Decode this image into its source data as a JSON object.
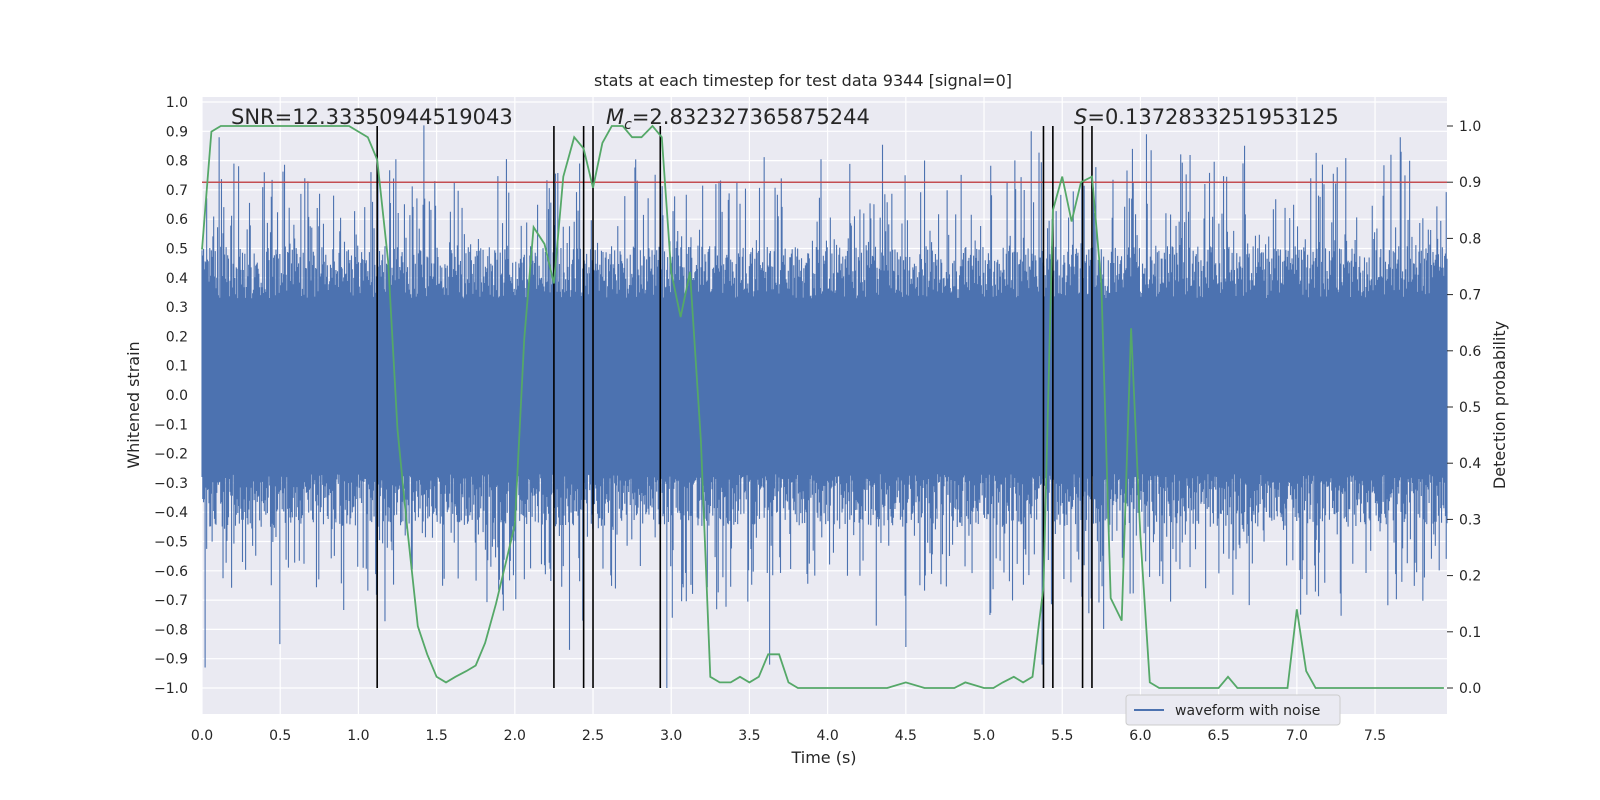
{
  "chart_data": {
    "type": "line",
    "title": "stats at each timestep for test data 9344 [signal=0]",
    "xlabel": "Time (s)",
    "ylabel_left": "Whitened strain",
    "ylabel_right": "Detection probability",
    "xlim": [
      0.0,
      8.0
    ],
    "ylim_left": [
      -1.09,
      1.0
    ],
    "ylim_right": [
      -0.05,
      1.04
    ],
    "x_ticks": [
      0.0,
      0.5,
      1.0,
      1.5,
      2.0,
      2.5,
      3.0,
      3.5,
      4.0,
      4.5,
      5.0,
      5.5,
      6.0,
      6.5,
      7.0,
      7.5
    ],
    "x_tick_labels": [
      "0.0",
      "0.5",
      "1.0",
      "1.5",
      "2.0",
      "2.5",
      "3.0",
      "3.5",
      "4.0",
      "4.5",
      "5.0",
      "5.5",
      "6.0",
      "6.5",
      "7.0",
      "7.5"
    ],
    "y_left_ticks": [
      1.0,
      0.9,
      0.8,
      0.7,
      0.6,
      0.5,
      0.4,
      0.3,
      0.2,
      0.1,
      0.0,
      -0.1,
      -0.2,
      -0.3,
      -0.4,
      -0.5,
      -0.6,
      -0.7,
      -0.8,
      -0.9,
      -1.0
    ],
    "y_left_tick_labels": [
      "1.0",
      "0.9",
      "0.8",
      "0.7",
      "0.6",
      "0.5",
      "0.4",
      "0.3",
      "0.2",
      "0.1",
      "0.0",
      "−0.1",
      "−0.2",
      "−0.3",
      "−0.4",
      "−0.5",
      "−0.6",
      "−0.7",
      "−0.8",
      "−0.9",
      "−1.0"
    ],
    "y_right_ticks": [
      1.0,
      0.9,
      0.8,
      0.7,
      0.6,
      0.5,
      0.4,
      0.3,
      0.2,
      0.1,
      0.0
    ],
    "y_right_tick_labels": [
      "1.0",
      "0.9",
      "0.8",
      "0.7",
      "0.6",
      "0.5",
      "0.4",
      "0.3",
      "0.2",
      "0.1",
      "0.0"
    ],
    "annotations": {
      "snr": "SNR=12.33350944519043",
      "mc_symbol": "M",
      "mc_subscript": "c",
      "mc_value": "=2.832327365875244",
      "s_symbol": "S",
      "s_value": "=0.1372833251953125"
    },
    "threshold": {
      "value": 0.9,
      "axis": "right",
      "color": "#c44e52"
    },
    "vertical_lines": [
      1.12,
      2.25,
      2.44,
      2.5,
      2.93,
      5.38,
      5.44,
      5.63,
      5.69
    ],
    "vertical_line_range": [
      0.0,
      1.0
    ],
    "detection_probability": {
      "name": "detection probability",
      "color": "#55a868",
      "x": [
        0.0,
        0.06,
        0.12,
        0.19,
        0.25,
        0.31,
        0.38,
        0.44,
        0.5,
        0.56,
        0.62,
        0.69,
        0.75,
        0.81,
        0.88,
        0.94,
        1.0,
        1.06,
        1.12,
        1.19,
        1.25,
        1.31,
        1.38,
        1.44,
        1.5,
        1.56,
        1.62,
        1.69,
        1.75,
        1.81,
        1.88,
        1.94,
        2.0,
        2.06,
        2.12,
        2.19,
        2.25,
        2.31,
        2.38,
        2.44,
        2.5,
        2.56,
        2.62,
        2.69,
        2.75,
        2.81,
        2.88,
        2.94,
        3.0,
        3.06,
        3.12,
        3.19,
        3.25,
        3.31,
        3.38,
        3.44,
        3.5,
        3.56,
        3.62,
        3.69,
        3.75,
        3.81,
        3.88,
        3.94,
        4.0,
        4.12,
        4.25,
        4.38,
        4.5,
        4.62,
        4.75,
        4.81,
        4.88,
        5.0,
        5.06,
        5.12,
        5.19,
        5.25,
        5.31,
        5.38,
        5.44,
        5.5,
        5.56,
        5.62,
        5.69,
        5.75,
        5.81,
        5.88,
        5.94,
        6.0,
        6.06,
        6.12,
        6.25,
        6.38,
        6.5,
        6.56,
        6.62,
        6.69,
        6.75,
        6.81,
        6.88,
        6.94,
        7.0,
        7.06,
        7.12,
        7.19,
        7.25,
        7.5,
        7.62,
        7.75,
        7.94
      ],
      "y": [
        0.78,
        0.99,
        1.0,
        1.0,
        1.0,
        1.0,
        1.0,
        1.0,
        1.0,
        1.0,
        1.0,
        1.0,
        1.0,
        1.0,
        1.0,
        1.0,
        0.99,
        0.98,
        0.94,
        0.76,
        0.46,
        0.29,
        0.11,
        0.06,
        0.02,
        0.01,
        0.02,
        0.03,
        0.04,
        0.08,
        0.15,
        0.22,
        0.29,
        0.62,
        0.82,
        0.79,
        0.72,
        0.91,
        0.98,
        0.96,
        0.89,
        0.97,
        1.0,
        1.0,
        0.98,
        0.98,
        1.0,
        0.98,
        0.74,
        0.66,
        0.74,
        0.44,
        0.02,
        0.01,
        0.01,
        0.02,
        0.01,
        0.02,
        0.06,
        0.06,
        0.01,
        0.0,
        0.0,
        0.0,
        0.0,
        0.0,
        0.0,
        0.0,
        0.01,
        0.0,
        0.0,
        0.0,
        0.01,
        0.0,
        0.0,
        0.01,
        0.02,
        0.01,
        0.02,
        0.18,
        0.85,
        0.91,
        0.83,
        0.9,
        0.91,
        0.72,
        0.16,
        0.12,
        0.64,
        0.27,
        0.01,
        0.0,
        0.0,
        0.0,
        0.0,
        0.02,
        0.0,
        0.0,
        0.0,
        0.0,
        0.0,
        0.0,
        0.14,
        0.03,
        0.0,
        0.0,
        0.0,
        0.0,
        0.0,
        0.0,
        0.0
      ]
    },
    "legend": [
      {
        "label": "waveform with noise",
        "color": "#4c72b0"
      }
    ],
    "waveform": {
      "name": "waveform with noise",
      "color": "#4c72b0",
      "samples": 4096,
      "band_core": [
        -0.27,
        0.33
      ],
      "spike_envelope": [
        -0.9,
        0.91
      ],
      "notable_peaks": [
        {
          "t": 0.02,
          "v": -0.93
        },
        {
          "t": 0.11,
          "v": 0.88
        },
        {
          "t": 0.5,
          "v": -0.85
        },
        {
          "t": 1.42,
          "v": 0.92
        },
        {
          "t": 2.35,
          "v": -0.87
        },
        {
          "t": 2.97,
          "v": -1.0
        },
        {
          "t": 3.63,
          "v": -0.92
        },
        {
          "t": 4.5,
          "v": -0.86
        },
        {
          "t": 5.3,
          "v": 0.9
        },
        {
          "t": 5.37,
          "v": -0.92
        },
        {
          "t": 6.04,
          "v": 0.89
        },
        {
          "t": 7.6,
          "v": 0.82
        },
        {
          "t": 7.66,
          "v": 0.88
        }
      ]
    }
  }
}
